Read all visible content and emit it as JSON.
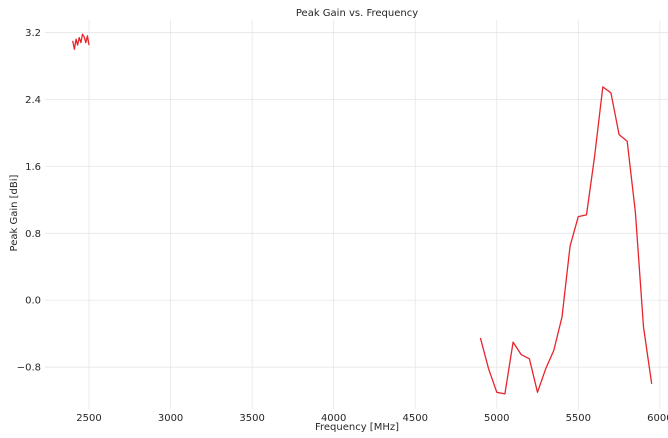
{
  "chart_data": {
    "type": "line",
    "title": "Peak Gain vs. Frequency",
    "xlabel": "Frequency [MHz]",
    "ylabel": "Peak Gain [dBi]",
    "xlim": [
      2230,
      6050
    ],
    "ylim": [
      -1.3,
      3.35
    ],
    "xticks": [
      2500,
      3000,
      3500,
      4000,
      4500,
      5000,
      5500,
      6000
    ],
    "yticks": [
      -0.8,
      0.0,
      0.8,
      1.6,
      2.4,
      3.2
    ],
    "ytick_labels": [
      "−0.8",
      "0.0",
      "0.8",
      "1.6",
      "2.4",
      "3.2"
    ],
    "grid": true,
    "line_color": "#e8242c",
    "series": [
      {
        "x": [
          2400,
          2410,
          2420,
          2430,
          2440,
          2450,
          2460,
          2470,
          2480,
          2490,
          2500
        ],
        "y": [
          3.1,
          3.0,
          3.12,
          3.05,
          3.14,
          3.08,
          3.18,
          3.15,
          3.08,
          3.16,
          3.05
        ]
      },
      {
        "x": [
          4900,
          4950,
          5000,
          5050,
          5100,
          5150,
          5200,
          5250,
          5300,
          5350,
          5400,
          5450,
          5500,
          5550,
          5600,
          5650,
          5700,
          5750,
          5800,
          5850,
          5900,
          5950
        ],
        "y": [
          -0.45,
          -0.82,
          -1.1,
          -1.12,
          -0.5,
          -0.65,
          -0.7,
          -1.1,
          -0.82,
          -0.6,
          -0.2,
          0.65,
          1.0,
          1.02,
          1.72,
          2.55,
          2.48,
          1.98,
          1.9,
          1.05,
          -0.32,
          -1.0
        ]
      }
    ]
  }
}
